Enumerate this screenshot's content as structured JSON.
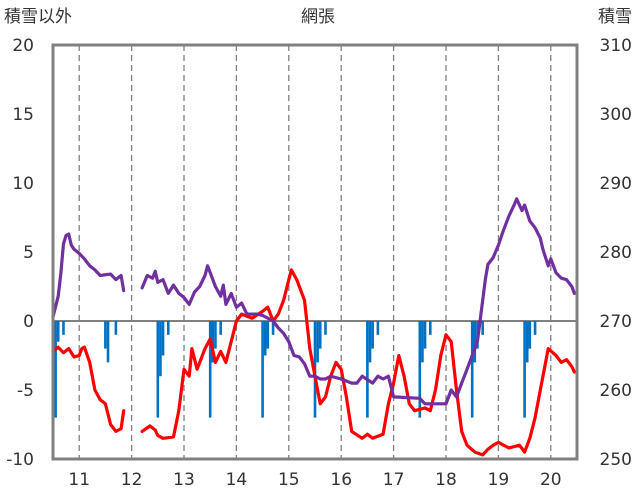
{
  "chart_data": {
    "type": "line",
    "title": "網張",
    "left_axis_label": "積雪以外",
    "right_axis_label": "積雪",
    "y_left": {
      "range": [
        -10,
        20
      ],
      "ticks": [
        "20",
        "15",
        "10",
        "5",
        "0",
        "-5",
        "-10"
      ]
    },
    "y_right": {
      "range": [
        250,
        310
      ],
      "ticks": [
        "310",
        "300",
        "290",
        "280",
        "270",
        "260",
        "250"
      ]
    },
    "x": {
      "range": [
        10.5,
        20.5
      ],
      "ticks": [
        "11",
        "12",
        "13",
        "14",
        "15",
        "16",
        "17",
        "18",
        "19",
        "20"
      ]
    },
    "grid": {
      "vertical": "dashed",
      "horizontal": "none",
      "zero_line": true
    },
    "colors": {
      "temperature": "#ff0000",
      "snow_depth": "#7030a0",
      "precipitation": "#0070c0",
      "frame": "#808080"
    },
    "series": [
      {
        "axis": "left",
        "style": "line",
        "color": "#ff0000",
        "segments": [
          [
            [
              10.5,
              -2.2
            ],
            [
              10.6,
              -1.9
            ],
            [
              10.7,
              -2.3
            ],
            [
              10.8,
              -2.0
            ],
            [
              10.9,
              -2.6
            ],
            [
              11.0,
              -2.5
            ],
            [
              11.05,
              -2.0
            ],
            [
              11.1,
              -1.9
            ],
            [
              11.2,
              -3.0
            ],
            [
              11.3,
              -5.0
            ],
            [
              11.4,
              -5.7
            ],
            [
              11.5,
              -6.0
            ],
            [
              11.6,
              -7.5
            ],
            [
              11.7,
              -8.0
            ],
            [
              11.8,
              -7.8
            ],
            [
              11.85,
              -6.5
            ]
          ],
          [
            [
              12.2,
              -8.0
            ],
            [
              12.35,
              -7.6
            ],
            [
              12.45,
              -7.9
            ],
            [
              12.5,
              -8.3
            ],
            [
              12.6,
              -8.5
            ],
            [
              12.8,
              -8.4
            ],
            [
              12.9,
              -6.5
            ],
            [
              13.0,
              -3.5
            ],
            [
              13.1,
              -4.0
            ],
            [
              13.15,
              -2.0
            ],
            [
              13.25,
              -3.5
            ],
            [
              13.4,
              -2.0
            ],
            [
              13.5,
              -1.3
            ],
            [
              13.6,
              -3.0
            ],
            [
              13.7,
              -2.2
            ],
            [
              13.8,
              -3.0
            ],
            [
              13.9,
              -1.5
            ],
            [
              14.0,
              0.0
            ],
            [
              14.1,
              0.5
            ],
            [
              14.3,
              0.2
            ],
            [
              14.5,
              0.7
            ],
            [
              14.6,
              1.0
            ],
            [
              14.7,
              0.0
            ],
            [
              14.8,
              0.5
            ],
            [
              14.9,
              1.5
            ],
            [
              15.0,
              3.0
            ],
            [
              15.05,
              3.7
            ],
            [
              15.15,
              3.0
            ],
            [
              15.3,
              1.5
            ],
            [
              15.4,
              -2.0
            ],
            [
              15.5,
              -4.0
            ],
            [
              15.6,
              -6.0
            ],
            [
              15.7,
              -5.5
            ],
            [
              15.8,
              -4.0
            ],
            [
              15.9,
              -3.0
            ],
            [
              16.0,
              -3.5
            ],
            [
              16.1,
              -5.5
            ],
            [
              16.2,
              -8.0
            ],
            [
              16.4,
              -8.5
            ],
            [
              16.5,
              -8.2
            ],
            [
              16.6,
              -8.5
            ],
            [
              16.8,
              -8.2
            ],
            [
              16.9,
              -6.0
            ],
            [
              17.0,
              -4.5
            ],
            [
              17.1,
              -2.5
            ],
            [
              17.2,
              -4.0
            ],
            [
              17.3,
              -6.0
            ],
            [
              17.4,
              -6.5
            ],
            [
              17.6,
              -6.3
            ],
            [
              17.7,
              -6.5
            ],
            [
              17.8,
              -5.0
            ],
            [
              17.9,
              -2.5
            ],
            [
              18.0,
              -1.0
            ],
            [
              18.1,
              -1.5
            ],
            [
              18.2,
              -5.0
            ],
            [
              18.3,
              -8.0
            ],
            [
              18.4,
              -9.0
            ],
            [
              18.55,
              -9.5
            ],
            [
              18.7,
              -9.7
            ],
            [
              18.8,
              -9.3
            ],
            [
              18.9,
              -9.0
            ],
            [
              19.0,
              -8.8
            ],
            [
              19.2,
              -9.2
            ],
            [
              19.4,
              -9.0
            ],
            [
              19.5,
              -9.5
            ],
            [
              19.6,
              -8.5
            ],
            [
              19.7,
              -7.0
            ],
            [
              19.8,
              -5.0
            ],
            [
              19.9,
              -3.0
            ],
            [
              19.95,
              -2.0
            ],
            [
              20.1,
              -2.5
            ],
            [
              20.2,
              -3.0
            ],
            [
              20.3,
              -2.8
            ],
            [
              20.4,
              -3.3
            ],
            [
              20.45,
              -3.7
            ]
          ]
        ]
      },
      {
        "axis": "right",
        "style": "line",
        "color": "#7030a0",
        "segments": [
          [
            [
              10.5,
              270.6
            ],
            [
              10.6,
              273.6
            ],
            [
              10.65,
              277.0
            ],
            [
              10.7,
              281.2
            ],
            [
              10.75,
              282.4
            ],
            [
              10.8,
              282.6
            ],
            [
              10.85,
              281.0
            ],
            [
              10.9,
              280.4
            ],
            [
              11.0,
              279.8
            ],
            [
              11.1,
              279.0
            ],
            [
              11.2,
              278.0
            ],
            [
              11.3,
              277.4
            ],
            [
              11.4,
              276.6
            ],
            [
              11.6,
              276.8
            ],
            [
              11.7,
              276.0
            ],
            [
              11.8,
              276.6
            ],
            [
              11.85,
              274.4
            ]
          ],
          [
            [
              12.2,
              274.8
            ],
            [
              12.3,
              276.6
            ],
            [
              12.4,
              276.2
            ],
            [
              12.45,
              277.2
            ],
            [
              12.5,
              275.6
            ],
            [
              12.6,
              276.0
            ],
            [
              12.7,
              274.0
            ],
            [
              12.8,
              275.2
            ],
            [
              12.9,
              274.0
            ],
            [
              13.0,
              273.4
            ],
            [
              13.1,
              272.4
            ],
            [
              13.2,
              274.2
            ],
            [
              13.3,
              275.0
            ],
            [
              13.4,
              276.6
            ],
            [
              13.45,
              278.0
            ],
            [
              13.55,
              276.0
            ],
            [
              13.6,
              275.0
            ],
            [
              13.7,
              273.6
            ],
            [
              13.75,
              275.2
            ],
            [
              13.8,
              272.4
            ],
            [
              13.9,
              274.0
            ],
            [
              14.0,
              272.0
            ],
            [
              14.1,
              272.6
            ],
            [
              14.2,
              271.0
            ],
            [
              14.4,
              271.0
            ],
            [
              14.5,
              270.8
            ],
            [
              14.6,
              270.4
            ],
            [
              14.7,
              270.0
            ],
            [
              14.8,
              269.0
            ],
            [
              14.9,
              268.2
            ],
            [
              15.0,
              267.0
            ],
            [
              15.1,
              265.0
            ],
            [
              15.2,
              264.8
            ],
            [
              15.3,
              263.8
            ],
            [
              15.4,
              262.0
            ],
            [
              15.5,
              262.0
            ],
            [
              15.6,
              261.6
            ],
            [
              15.7,
              261.6
            ],
            [
              15.8,
              262.0
            ],
            [
              16.0,
              261.6
            ],
            [
              16.2,
              261.0
            ],
            [
              16.3,
              261.0
            ],
            [
              16.4,
              262.0
            ],
            [
              16.6,
              261.0
            ],
            [
              16.7,
              262.0
            ],
            [
              16.8,
              261.6
            ],
            [
              16.9,
              262.0
            ],
            [
              17.0,
              259.0
            ],
            [
              17.5,
              258.8
            ],
            [
              17.6,
              258.0
            ],
            [
              18.0,
              258.0
            ],
            [
              18.1,
              260.0
            ],
            [
              18.2,
              259.0
            ],
            [
              18.3,
              261.0
            ],
            [
              18.4,
              263.0
            ],
            [
              18.5,
              265.0
            ],
            [
              18.6,
              267.0
            ],
            [
              18.7,
              273.0
            ],
            [
              18.75,
              276.0
            ],
            [
              18.8,
              278.2
            ],
            [
              18.9,
              279.2
            ],
            [
              19.0,
              281.0
            ],
            [
              19.1,
              283.2
            ],
            [
              19.2,
              285.2
            ],
            [
              19.3,
              286.8
            ],
            [
              19.35,
              287.7
            ],
            [
              19.45,
              286.0
            ],
            [
              19.5,
              286.8
            ],
            [
              19.6,
              284.5
            ],
            [
              19.7,
              283.5
            ],
            [
              19.8,
              282.0
            ],
            [
              19.85,
              280.4
            ],
            [
              19.95,
              278.0
            ],
            [
              20.0,
              279.0
            ],
            [
              20.1,
              277.0
            ],
            [
              20.2,
              276.2
            ],
            [
              20.3,
              276.0
            ],
            [
              20.4,
              275.0
            ],
            [
              20.45,
              274.0
            ]
          ]
        ]
      },
      {
        "axis": "left",
        "style": "bar",
        "color": "#0070c0",
        "bars": [
          [
            10.55,
            -7.0
          ],
          [
            10.6,
            -1.5
          ],
          [
            10.7,
            -1.0
          ],
          [
            11.5,
            -2.0
          ],
          [
            11.55,
            -3.0
          ],
          [
            11.7,
            -1.0
          ],
          [
            12.5,
            -7.0
          ],
          [
            12.55,
            -4.0
          ],
          [
            12.6,
            -2.5
          ],
          [
            12.7,
            -1.0
          ],
          [
            13.5,
            -7.0
          ],
          [
            13.55,
            -3.0
          ],
          [
            13.6,
            -2.0
          ],
          [
            13.7,
            -1.0
          ],
          [
            14.5,
            -7.0
          ],
          [
            14.55,
            -2.5
          ],
          [
            14.6,
            -2.0
          ],
          [
            14.7,
            -1.0
          ],
          [
            15.5,
            -7.0
          ],
          [
            15.55,
            -3.0
          ],
          [
            15.6,
            -2.0
          ],
          [
            15.7,
            -1.0
          ],
          [
            16.5,
            -7.0
          ],
          [
            16.55,
            -3.0
          ],
          [
            16.6,
            -2.0
          ],
          [
            16.7,
            -1.0
          ],
          [
            17.5,
            -7.0
          ],
          [
            17.55,
            -3.0
          ],
          [
            17.6,
            -2.0
          ],
          [
            17.7,
            -1.0
          ],
          [
            18.5,
            -7.0
          ],
          [
            18.55,
            -3.0
          ],
          [
            18.6,
            -2.0
          ],
          [
            18.7,
            -1.0
          ],
          [
            19.5,
            -7.0
          ],
          [
            19.55,
            -3.0
          ],
          [
            19.6,
            -2.0
          ],
          [
            19.7,
            -1.0
          ]
        ]
      }
    ]
  }
}
